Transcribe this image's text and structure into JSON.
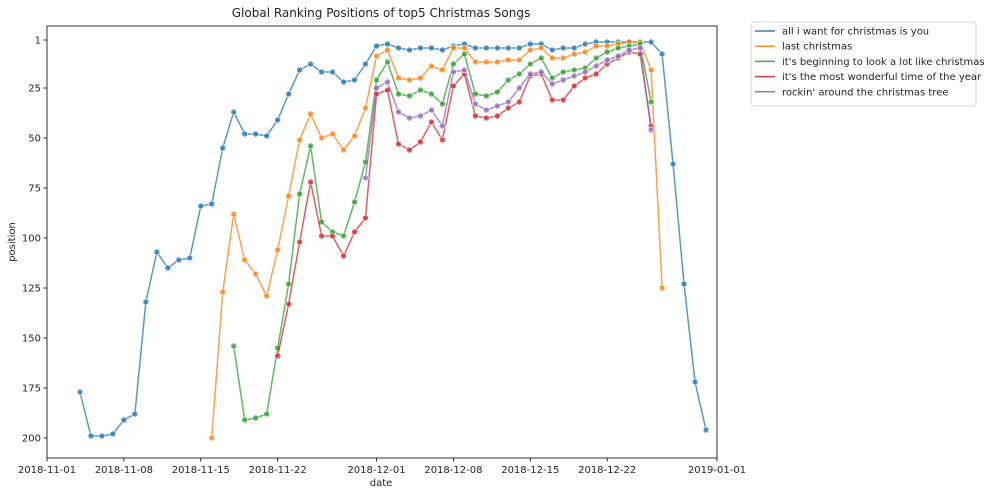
{
  "chart_data": {
    "type": "line",
    "title": "Global Ranking Positions of top5 Christmas Songs",
    "xlabel": "date",
    "ylabel": "position",
    "xlim": [
      "2018-11-01",
      "2019-01-01"
    ],
    "ylim": [
      210,
      -6
    ],
    "y_inverted": true,
    "x_ticks": [
      "2018-11-01",
      "2018-11-08",
      "2018-11-15",
      "2018-11-22",
      "2018-12-01",
      "2018-12-08",
      "2018-12-15",
      "2018-12-22",
      "2019-01-01"
    ],
    "y_ticks": [
      1,
      25,
      50,
      75,
      100,
      125,
      150,
      175,
      200
    ],
    "grid": false,
    "legend_position": "outside-top-right",
    "series": [
      {
        "name": "all i want for christmas is you",
        "color": "#1f77b4",
        "points": [
          [
            "2018-11-04",
            177
          ],
          [
            "2018-11-05",
            199
          ],
          [
            "2018-11-06",
            199
          ],
          [
            "2018-11-07",
            198
          ],
          [
            "2018-11-08",
            191
          ],
          [
            "2018-11-09",
            188
          ],
          [
            "2018-11-10",
            132
          ],
          [
            "2018-11-11",
            107
          ],
          [
            "2018-11-12",
            115
          ],
          [
            "2018-11-13",
            111
          ],
          [
            "2018-11-14",
            110
          ],
          [
            "2018-11-15",
            84
          ],
          [
            "2018-11-16",
            83
          ],
          [
            "2018-11-17",
            55
          ],
          [
            "2018-11-18",
            37
          ],
          [
            "2018-11-19",
            48
          ],
          [
            "2018-11-20",
            48
          ],
          [
            "2018-11-21",
            49
          ],
          [
            "2018-11-22",
            41
          ],
          [
            "2018-11-23",
            28
          ],
          [
            "2018-11-24",
            16
          ],
          [
            "2018-11-25",
            13
          ],
          [
            "2018-11-26",
            17
          ],
          [
            "2018-11-27",
            17
          ],
          [
            "2018-11-28",
            22
          ],
          [
            "2018-11-29",
            21
          ],
          [
            "2018-11-30",
            13
          ],
          [
            "2018-12-01",
            4
          ],
          [
            "2018-12-02",
            3
          ],
          [
            "2018-12-03",
            5
          ],
          [
            "2018-12-04",
            6
          ],
          [
            "2018-12-05",
            5
          ],
          [
            "2018-12-06",
            5
          ],
          [
            "2018-12-07",
            6
          ],
          [
            "2018-12-08",
            4
          ],
          [
            "2018-12-09",
            3
          ],
          [
            "2018-12-10",
            5
          ],
          [
            "2018-12-11",
            5
          ],
          [
            "2018-12-12",
            5
          ],
          [
            "2018-12-13",
            5
          ],
          [
            "2018-12-14",
            5
          ],
          [
            "2018-12-15",
            3
          ],
          [
            "2018-12-16",
            3
          ],
          [
            "2018-12-17",
            6
          ],
          [
            "2018-12-18",
            5
          ],
          [
            "2018-12-19",
            5
          ],
          [
            "2018-12-20",
            3
          ],
          [
            "2018-12-21",
            2
          ],
          [
            "2018-12-22",
            2
          ],
          [
            "2018-12-23",
            2
          ],
          [
            "2018-12-24",
            2
          ],
          [
            "2018-12-25",
            2
          ],
          [
            "2018-12-26",
            2
          ],
          [
            "2018-12-27",
            8
          ],
          [
            "2018-12-28",
            63
          ],
          [
            "2018-12-29",
            123
          ],
          [
            "2018-12-30",
            172
          ],
          [
            "2018-12-31",
            196
          ]
        ]
      },
      {
        "name": "last christmas",
        "color": "#ff7f0e",
        "points": [
          [
            "2018-11-16",
            200
          ],
          [
            "2018-11-17",
            127
          ],
          [
            "2018-11-18",
            88
          ],
          [
            "2018-11-19",
            111
          ],
          [
            "2018-11-20",
            118
          ],
          [
            "2018-11-21",
            129
          ],
          [
            "2018-11-22",
            106
          ],
          [
            "2018-11-23",
            79
          ],
          [
            "2018-11-24",
            51
          ],
          [
            "2018-11-25",
            38
          ],
          [
            "2018-11-26",
            50
          ],
          [
            "2018-11-27",
            48
          ],
          [
            "2018-11-28",
            56
          ],
          [
            "2018-11-29",
            49
          ],
          [
            "2018-11-30",
            35
          ],
          [
            "2018-12-01",
            9
          ],
          [
            "2018-12-02",
            6
          ],
          [
            "2018-12-03",
            20
          ],
          [
            "2018-12-04",
            21
          ],
          [
            "2018-12-05",
            20
          ],
          [
            "2018-12-06",
            14
          ],
          [
            "2018-12-07",
            16
          ],
          [
            "2018-12-08",
            5
          ],
          [
            "2018-12-09",
            5
          ],
          [
            "2018-12-10",
            12
          ],
          [
            "2018-12-11",
            12
          ],
          [
            "2018-12-12",
            12
          ],
          [
            "2018-12-13",
            11
          ],
          [
            "2018-12-14",
            11
          ],
          [
            "2018-12-15",
            6
          ],
          [
            "2018-12-16",
            5
          ],
          [
            "2018-12-17",
            10
          ],
          [
            "2018-12-18",
            10
          ],
          [
            "2018-12-19",
            8
          ],
          [
            "2018-12-20",
            7
          ],
          [
            "2018-12-21",
            4
          ],
          [
            "2018-12-22",
            4
          ],
          [
            "2018-12-23",
            3
          ],
          [
            "2018-12-24",
            2
          ],
          [
            "2018-12-25",
            2
          ],
          [
            "2018-12-26",
            16
          ],
          [
            "2018-12-27",
            125
          ]
        ]
      },
      {
        "name": "it's beginning to look a lot like christmas",
        "color": "#2ca02c",
        "points": [
          [
            "2018-11-18",
            154
          ],
          [
            "2018-11-19",
            191
          ],
          [
            "2018-11-20",
            190
          ],
          [
            "2018-11-21",
            188
          ],
          [
            "2018-11-22",
            155
          ],
          [
            "2018-11-23",
            123
          ],
          [
            "2018-11-24",
            78
          ],
          [
            "2018-11-25",
            54
          ],
          [
            "2018-11-26",
            92
          ],
          [
            "2018-11-27",
            97
          ],
          [
            "2018-11-28",
            99
          ],
          [
            "2018-11-29",
            82
          ],
          [
            "2018-11-30",
            62
          ],
          [
            "2018-12-01",
            21
          ],
          [
            "2018-12-02",
            12
          ],
          [
            "2018-12-03",
            28
          ],
          [
            "2018-12-04",
            29
          ],
          [
            "2018-12-05",
            26
          ],
          [
            "2018-12-06",
            28
          ],
          [
            "2018-12-07",
            33
          ],
          [
            "2018-12-08",
            13
          ],
          [
            "2018-12-09",
            8
          ],
          [
            "2018-12-10",
            28
          ],
          [
            "2018-12-11",
            29
          ],
          [
            "2018-12-12",
            27
          ],
          [
            "2018-12-13",
            21
          ],
          [
            "2018-12-14",
            18
          ],
          [
            "2018-12-15",
            13
          ],
          [
            "2018-12-16",
            10
          ],
          [
            "2018-12-17",
            20
          ],
          [
            "2018-12-18",
            17
          ],
          [
            "2018-12-19",
            16
          ],
          [
            "2018-12-20",
            15
          ],
          [
            "2018-12-21",
            10
          ],
          [
            "2018-12-22",
            7
          ],
          [
            "2018-12-23",
            5
          ],
          [
            "2018-12-24",
            4
          ],
          [
            "2018-12-25",
            3
          ],
          [
            "2018-12-26",
            32
          ]
        ]
      },
      {
        "name": "it's the most wonderful time of the year",
        "color": "#d62728",
        "points": [
          [
            "2018-11-22",
            159
          ],
          [
            "2018-11-23",
            133
          ],
          [
            "2018-11-24",
            102
          ],
          [
            "2018-11-25",
            72
          ],
          [
            "2018-11-26",
            99
          ],
          [
            "2018-11-27",
            99
          ],
          [
            "2018-11-28",
            109
          ],
          [
            "2018-11-29",
            97
          ],
          [
            "2018-11-30",
            90
          ],
          [
            "2018-12-01",
            28
          ],
          [
            "2018-12-02",
            26
          ],
          [
            "2018-12-03",
            53
          ],
          [
            "2018-12-04",
            56
          ],
          [
            "2018-12-05",
            52
          ],
          [
            "2018-12-06",
            42
          ],
          [
            "2018-12-07",
            51
          ],
          [
            "2018-12-08",
            24
          ],
          [
            "2018-12-09",
            18
          ],
          [
            "2018-12-10",
            39
          ],
          [
            "2018-12-11",
            40
          ],
          [
            "2018-12-12",
            39
          ],
          [
            "2018-12-13",
            35
          ],
          [
            "2018-12-14",
            32
          ],
          [
            "2018-12-15",
            19
          ],
          [
            "2018-12-16",
            18
          ],
          [
            "2018-12-17",
            31
          ],
          [
            "2018-12-18",
            31
          ],
          [
            "2018-12-19",
            24
          ],
          [
            "2018-12-20",
            20
          ],
          [
            "2018-12-21",
            18
          ],
          [
            "2018-12-22",
            13
          ],
          [
            "2018-12-23",
            10
          ],
          [
            "2018-12-24",
            7
          ],
          [
            "2018-12-25",
            8
          ],
          [
            "2018-12-26",
            44
          ]
        ]
      },
      {
        "name": "rockin' around the christmas tree",
        "color": "#9467bd",
        "points": [
          [
            "2018-11-30",
            70
          ],
          [
            "2018-12-01",
            25
          ],
          [
            "2018-12-02",
            22
          ],
          [
            "2018-12-03",
            37
          ],
          [
            "2018-12-04",
            40
          ],
          [
            "2018-12-05",
            39
          ],
          [
            "2018-12-06",
            36
          ],
          [
            "2018-12-07",
            44
          ],
          [
            "2018-12-08",
            17
          ],
          [
            "2018-12-09",
            16
          ],
          [
            "2018-12-10",
            33
          ],
          [
            "2018-12-11",
            36
          ],
          [
            "2018-12-12",
            34
          ],
          [
            "2018-12-13",
            32
          ],
          [
            "2018-12-14",
            25
          ],
          [
            "2018-12-15",
            18
          ],
          [
            "2018-12-16",
            17
          ],
          [
            "2018-12-17",
            23
          ],
          [
            "2018-12-18",
            21
          ],
          [
            "2018-12-19",
            19
          ],
          [
            "2018-12-20",
            17
          ],
          [
            "2018-12-21",
            14
          ],
          [
            "2018-12-22",
            11
          ],
          [
            "2018-12-23",
            9
          ],
          [
            "2018-12-24",
            6
          ],
          [
            "2018-12-25",
            5
          ],
          [
            "2018-12-26",
            46
          ]
        ]
      }
    ]
  }
}
